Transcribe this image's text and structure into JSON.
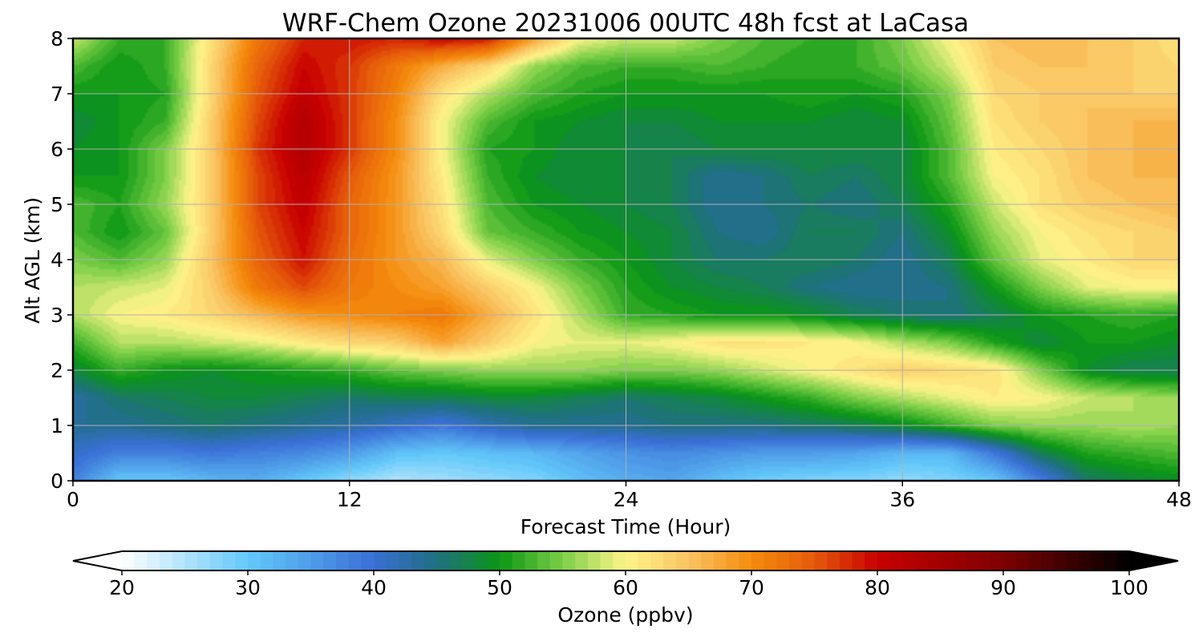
{
  "chart_data": {
    "type": "heatmap",
    "title": "WRF-Chem Ozone  20231006 00UTC 48h fcst at LaCasa",
    "xlabel": "Forecast Time (Hour)",
    "ylabel": "Alt AGL (km)",
    "xlim": [
      0,
      48
    ],
    "ylim": [
      0,
      8
    ],
    "x_ticks": [
      "0",
      "12",
      "24",
      "36",
      "48"
    ],
    "y_ticks": [
      "0",
      "1",
      "2",
      "3",
      "4",
      "5",
      "6",
      "7",
      "8"
    ],
    "grid": true,
    "x_hours": [
      0,
      2,
      4,
      6,
      8,
      10,
      12,
      14,
      16,
      18,
      20,
      22,
      24,
      26,
      28,
      30,
      32,
      34,
      36,
      38,
      40,
      42,
      44,
      46,
      48
    ],
    "y_km": [
      0,
      0.5,
      1,
      1.5,
      2,
      2.5,
      3,
      3.5,
      4,
      4.5,
      5,
      5.5,
      6,
      6.5,
      7,
      7.5,
      8
    ],
    "z_ppbv": [
      [
        38,
        30,
        30,
        32,
        33,
        30,
        27,
        25,
        26,
        27,
        28,
        31,
        33,
        34,
        31,
        29,
        28,
        28,
        27,
        28,
        30,
        38,
        46,
        48,
        49
      ],
      [
        41,
        38,
        38,
        39,
        38,
        37,
        35,
        31,
        30,
        31,
        32,
        34,
        36,
        37,
        36,
        35,
        35,
        34,
        32,
        32,
        39,
        47,
        51,
        52,
        53
      ],
      [
        44,
        44,
        45,
        46,
        45,
        44,
        43,
        41,
        39,
        42,
        44,
        44,
        44,
        45,
        45,
        45,
        46,
        47,
        49,
        52,
        55,
        56,
        56,
        57,
        56
      ],
      [
        43,
        46,
        47,
        48,
        48,
        47,
        46,
        47,
        47,
        48,
        48,
        47,
        46,
        47,
        48,
        50,
        52,
        55,
        57,
        59,
        61,
        60,
        58,
        57,
        56
      ],
      [
        48,
        52,
        50,
        49,
        50,
        51,
        52,
        54,
        55,
        56,
        56,
        56,
        55,
        55,
        56,
        58,
        60,
        62,
        64,
        63,
        62,
        55,
        49,
        47,
        47
      ],
      [
        52,
        57,
        57,
        58,
        59,
        61,
        63,
        64,
        68,
        64,
        60,
        59,
        59,
        60,
        62,
        62,
        61,
        60,
        57,
        55,
        51,
        48,
        50,
        50,
        49
      ],
      [
        57,
        60,
        61,
        63,
        66,
        69,
        70,
        71,
        72,
        67,
        62,
        57,
        52,
        51,
        50,
        50,
        49,
        47,
        46,
        45,
        47,
        50,
        51,
        52,
        51
      ],
      [
        57,
        58,
        59,
        64,
        72,
        76,
        72,
        70,
        68,
        64,
        60,
        55,
        51,
        49,
        48,
        47,
        45,
        44,
        44,
        45,
        50,
        55,
        59,
        60,
        60
      ],
      [
        55,
        53,
        56,
        65,
        74,
        79,
        73,
        69,
        66,
        59,
        55,
        52,
        50,
        48,
        46,
        46,
        47,
        46,
        44,
        47,
        54,
        59,
        61,
        63,
        63
      ],
      [
        53,
        50,
        54,
        64,
        75,
        80,
        74,
        69,
        63,
        54,
        52,
        50,
        49,
        48,
        45,
        44,
        47,
        47,
        45,
        49,
        56,
        60,
        62,
        63,
        64
      ],
      [
        53,
        51,
        56,
        64,
        76,
        81,
        74,
        69,
        62,
        53,
        50,
        49,
        48,
        47,
        44,
        45,
        46,
        45,
        47,
        51,
        58,
        62,
        64,
        65,
        66
      ],
      [
        50,
        50,
        55,
        64,
        76,
        82,
        75,
        69,
        61,
        52,
        49,
        48,
        48,
        47,
        44,
        45,
        47,
        46,
        48,
        53,
        60,
        62,
        65,
        66,
        66
      ],
      [
        49,
        50,
        55,
        64,
        77,
        83,
        77,
        70,
        60,
        51,
        50,
        48,
        48,
        47,
        48,
        48,
        48,
        48,
        48,
        53,
        61,
        63,
        65,
        66,
        66
      ],
      [
        48,
        50,
        52,
        64,
        76,
        83,
        77,
        70,
        60,
        53,
        50,
        49,
        48,
        48,
        49,
        49,
        49,
        48,
        49,
        54,
        62,
        64,
        65,
        66,
        66
      ],
      [
        50,
        50,
        51,
        63,
        75,
        81,
        77,
        71,
        62,
        57,
        53,
        51,
        50,
        50,
        50,
        50,
        51,
        50,
        51,
        55,
        63,
        64,
        65,
        64,
        64
      ],
      [
        53,
        50,
        52,
        63,
        74,
        80,
        77,
        72,
        67,
        63,
        56,
        53,
        52,
        52,
        53,
        52,
        51,
        52,
        54,
        58,
        64,
        65,
        65,
        64,
        63
      ],
      [
        58,
        52,
        52,
        62,
        72,
        78,
        79,
        78,
        80,
        79,
        68,
        60,
        58,
        58,
        55,
        53,
        52,
        52,
        55,
        60,
        65,
        66,
        65,
        64,
        62
      ]
    ]
  },
  "colorbar": {
    "label": "Ozone  (ppbv)",
    "ticks": [
      "20",
      "30",
      "40",
      "50",
      "60",
      "70",
      "80",
      "90",
      "100"
    ],
    "min": 20,
    "max": 100,
    "step": 1,
    "extend": "both",
    "color_stops": [
      {
        "v": 20,
        "c": "#ffffff"
      },
      {
        "v": 30,
        "c": "#63c8fa"
      },
      {
        "v": 40,
        "c": "#3a6fd6"
      },
      {
        "v": 45,
        "c": "#1f6f80"
      },
      {
        "v": 50,
        "c": "#0a9614"
      },
      {
        "v": 55,
        "c": "#7ccf47"
      },
      {
        "v": 60,
        "c": "#fff58a"
      },
      {
        "v": 65,
        "c": "#f9c462"
      },
      {
        "v": 70,
        "c": "#f58b0c"
      },
      {
        "v": 75,
        "c": "#e55a0a"
      },
      {
        "v": 80,
        "c": "#c80000"
      },
      {
        "v": 90,
        "c": "#7e0000"
      },
      {
        "v": 100,
        "c": "#000000"
      }
    ]
  }
}
